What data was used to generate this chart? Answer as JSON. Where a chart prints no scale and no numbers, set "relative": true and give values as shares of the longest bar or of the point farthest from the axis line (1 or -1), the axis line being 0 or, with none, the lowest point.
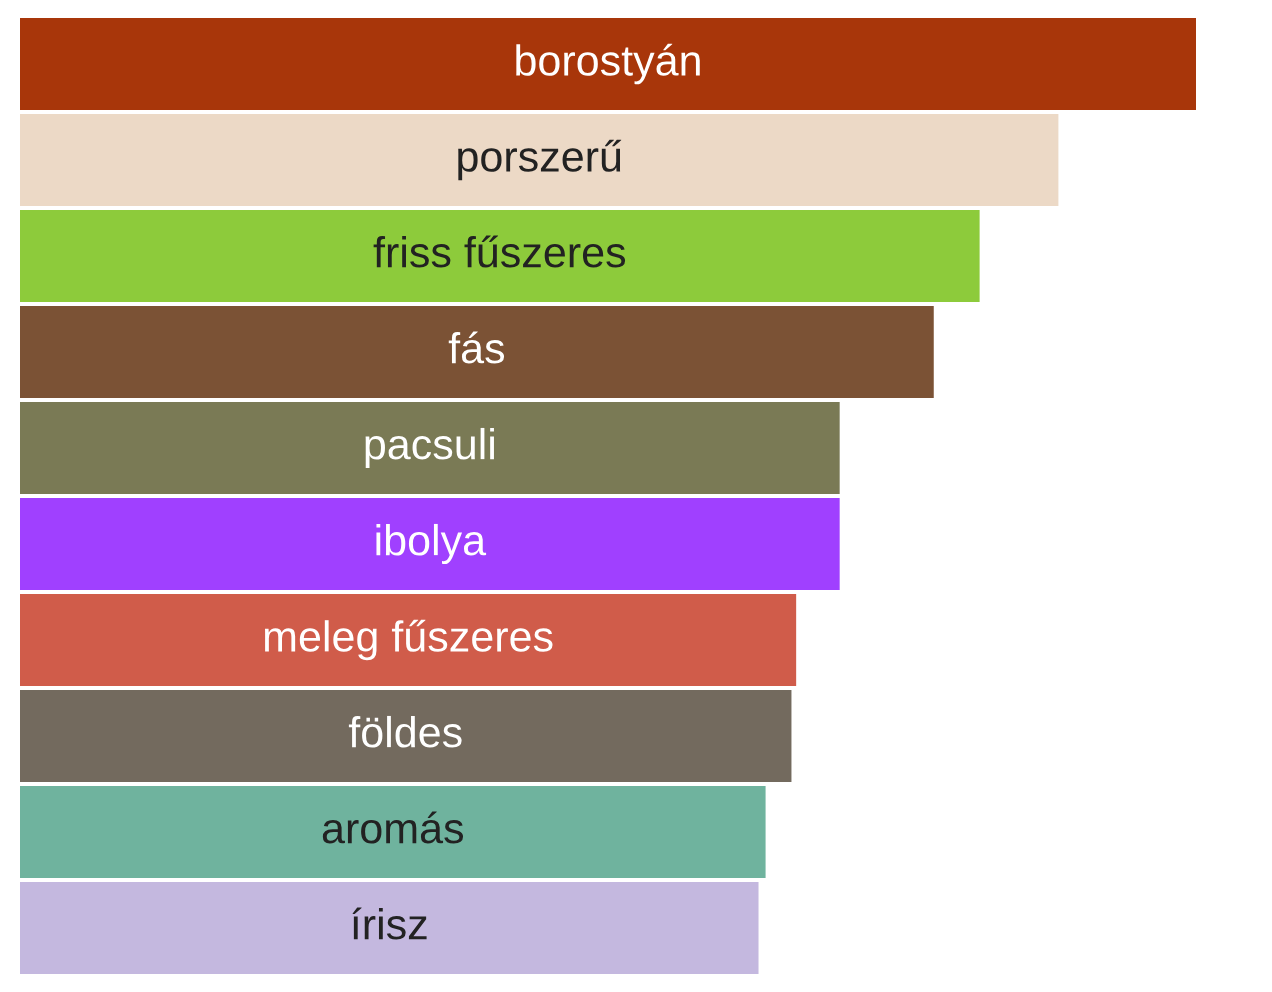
{
  "chart_data": {
    "type": "bar",
    "orientation": "horizontal",
    "relative": true,
    "categories": [
      "borostyán",
      "porszerű",
      "friss fűszeres",
      "fás",
      "pacsuli",
      "ibolya",
      "meleg fűszeres",
      "földes",
      "aromás",
      "írisz"
    ],
    "values": [
      1,
      0.883,
      0.816,
      0.777,
      0.697,
      0.697,
      0.66,
      0.656,
      0.634,
      0.628
    ],
    "colors": [
      "#a8360a",
      "#ecd9c6",
      "#8dcb3b",
      "#7b5235",
      "#7a7a55",
      "#a040ff",
      "#d05c4a",
      "#736a5e",
      "#6fb39e",
      "#c4b8df"
    ],
    "legend": false
  }
}
